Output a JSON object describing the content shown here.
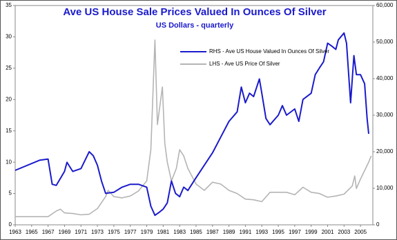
{
  "chart_data": {
    "type": "line",
    "title": "Ave US House Sale Prices Valued In Ounces Of Silver",
    "subtitle": "US Dollars - quarterly",
    "xlim": [
      1963,
      2006.5
    ],
    "xticks": [
      1963,
      1965,
      1967,
      1969,
      1971,
      1973,
      1975,
      1977,
      1979,
      1981,
      1983,
      1985,
      1987,
      1989,
      1991,
      1993,
      1995,
      1997,
      1999,
      2001,
      2003,
      2005
    ],
    "ylim": [
      0,
      35
    ],
    "yticks": [
      0,
      5,
      10,
      15,
      20,
      25,
      30,
      35
    ],
    "y2lim": [
      0,
      60000
    ],
    "y2ticks": [
      0,
      {
        "value": 10000,
        "label": "10,000"
      },
      {
        "value": 20000,
        "label": "20,000"
      },
      {
        "value": 30000,
        "label": "30,000"
      },
      {
        "value": 40000,
        "label": "40,000"
      },
      {
        "value": 50000,
        "label": "50,000"
      },
      {
        "value": 60000,
        "label": "60,000"
      }
    ],
    "grid": false,
    "legend": "upper center",
    "series": [
      {
        "name": "RHS - Ave US House Valued In Ounces Of Silver",
        "color": "#1a1acc",
        "axis": "y2",
        "x": [
          1963,
          1966,
          1967,
          1967.5,
          1968,
          1969,
          1969.3,
          1970,
          1971,
          1972,
          1972.5,
          1973,
          1973.5,
          1974,
          1975,
          1976,
          1977,
          1978,
          1979,
          1979.5,
          1980,
          1980.5,
          1981,
          1981.5,
          1982,
          1982.5,
          1983,
          1983.5,
          1984,
          1985,
          1986,
          1987,
          1988,
          1989,
          1990,
          1990.5,
          1991,
          1991.5,
          1992,
          1992.7,
          1993,
          1993.5,
          1994,
          1995,
          1995.5,
          1996,
          1997,
          1997.5,
          1998,
          1999,
          1999.5,
          2000,
          2000.5,
          2001,
          2001.5,
          2002,
          2002.3,
          2003,
          2003.3,
          2003.8,
          2004.2,
          2004.5,
          2005,
          2005.5,
          2005.8,
          2006
        ],
        "values": [
          14900,
          17700,
          18000,
          11100,
          10800,
          14600,
          17100,
          14600,
          15400,
          20000,
          18900,
          16300,
          12000,
          8600,
          8900,
          10300,
          11100,
          11100,
          10300,
          5100,
          2600,
          3400,
          4300,
          6000,
          12000,
          8600,
          7700,
          10300,
          9400,
          12900,
          16300,
          19700,
          24000,
          28300,
          30900,
          37700,
          33400,
          36000,
          35100,
          39900,
          36000,
          29100,
          27400,
          30000,
          32600,
          30000,
          31700,
          28300,
          34300,
          36000,
          41100,
          42900,
          44600,
          49700,
          48900,
          48000,
          50600,
          52500,
          49700,
          33400,
          46300,
          41100,
          41100,
          38600,
          29100,
          24900
        ]
      },
      {
        "name": "LHS - Ave US Price Of Silver",
        "color": "#b4b4b4",
        "axis": "y",
        "x": [
          1963,
          1967,
          1968,
          1968.5,
          1969,
          1970,
          1971,
          1972,
          1973,
          1974,
          1974.3,
          1975,
          1976,
          1977,
          1978,
          1979,
          1979.5,
          1980,
          1980.3,
          1980.7,
          1980.9,
          1981.2,
          1981.5,
          1982,
          1982.6,
          1983,
          1983.5,
          1984,
          1985,
          1986,
          1987,
          1988,
          1989,
          1990,
          1991,
          1992,
          1993,
          1994,
          1995,
          1996,
          1997,
          1998,
          1999,
          2000,
          2001,
          2002,
          2003,
          2004,
          2004.3,
          2004.5,
          2005,
          2006,
          2006.3
        ],
        "values": [
          1.3,
          1.3,
          2.2,
          2.5,
          1.9,
          1.8,
          1.6,
          1.7,
          2.6,
          4.5,
          5.5,
          4.5,
          4.3,
          4.6,
          5.4,
          7,
          12,
          29.5,
          16,
          20,
          22,
          13,
          10,
          7,
          9,
          12,
          11,
          9,
          6.5,
          5.5,
          6.8,
          6.5,
          5.5,
          5,
          4.1,
          4,
          3.7,
          5.2,
          5.2,
          5.2,
          4.8,
          6,
          5.2,
          5,
          4.4,
          4.6,
          4.9,
          6.2,
          7.8,
          5.8,
          7.3,
          10,
          11
        ]
      }
    ]
  }
}
